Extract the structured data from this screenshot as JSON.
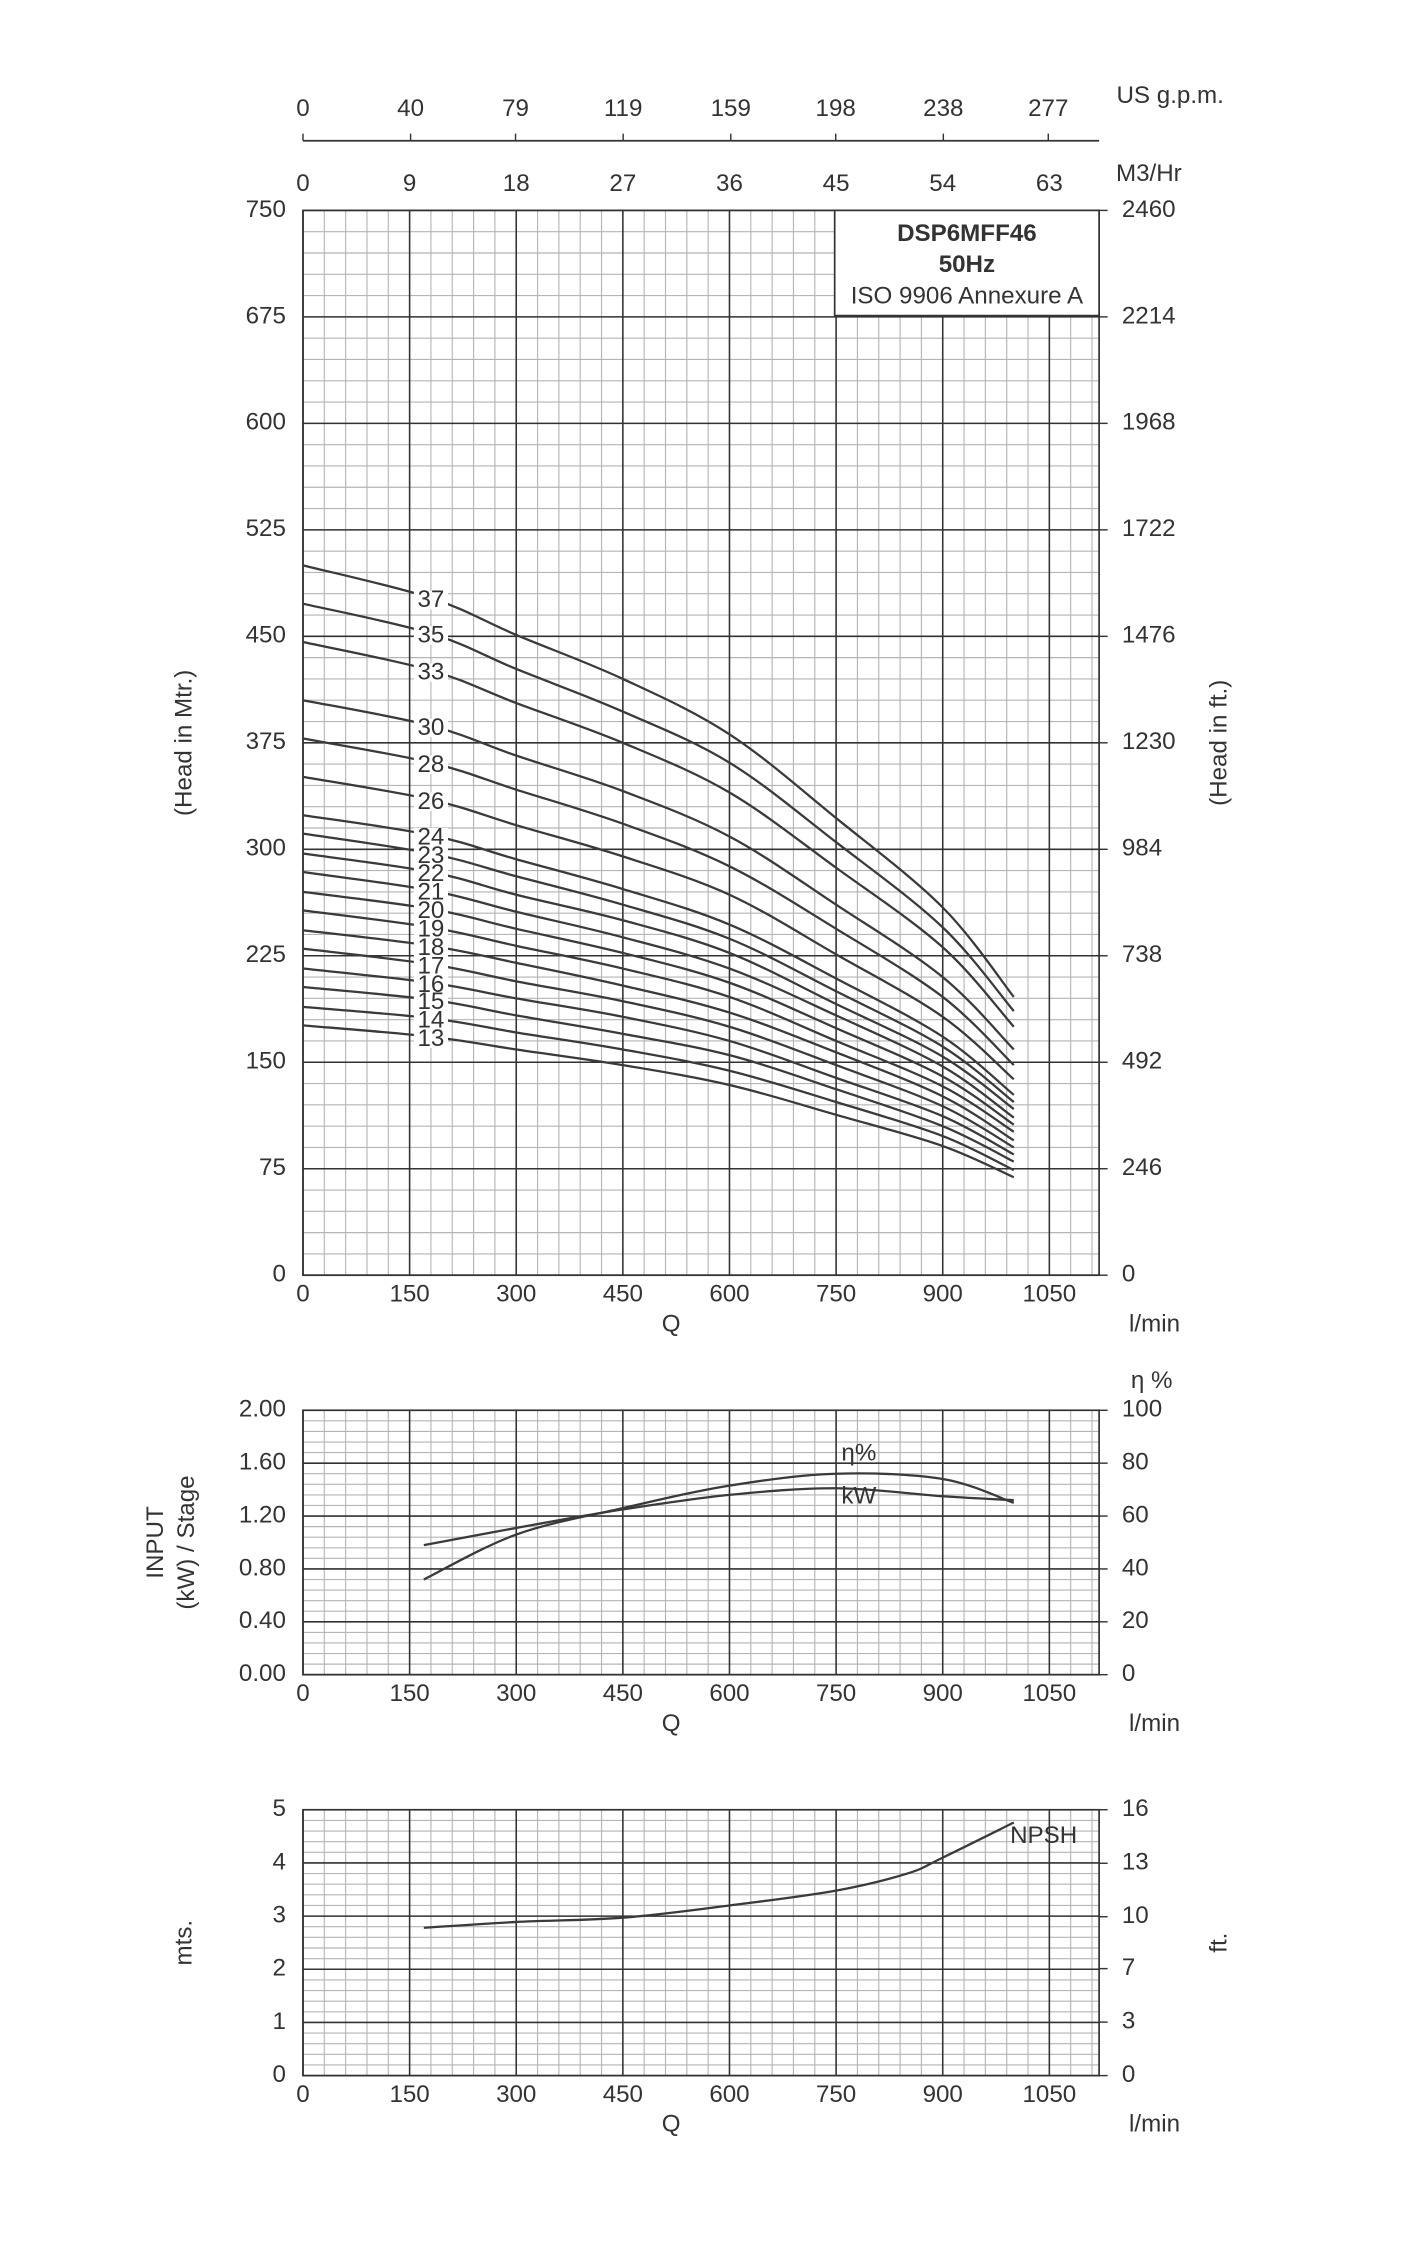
{
  "chart_data": [
    {
      "type": "line",
      "title_box": [
        "DSP6MFF46",
        "50Hz",
        "ISO 9906 Annexure A"
      ],
      "x_label": "Q",
      "x_unit": "l/min",
      "y_label": "(Head in Mtr.)",
      "y2_label": "(Head in ft.)",
      "xlim": [
        0,
        1120
      ],
      "xticks": [
        0,
        150,
        300,
        450,
        600,
        750,
        900,
        1050
      ],
      "ylim": [
        0,
        750
      ],
      "yticks": [
        0,
        75,
        150,
        225,
        300,
        375,
        450,
        525,
        600,
        675,
        750
      ],
      "y2lim": [
        0,
        2460
      ],
      "y2ticks": [
        0,
        246,
        492,
        738,
        984,
        1230,
        1476,
        1722,
        1968,
        2214,
        2460
      ],
      "top_axes": [
        {
          "label": "M3/Hr",
          "xlim": [
            0,
            67.2
          ],
          "xticks": [
            0,
            9,
            18,
            27,
            36,
            45,
            54,
            63
          ]
        },
        {
          "label": "US g.p.m.",
          "xlim": [
            0,
            295.9
          ],
          "xticks": [
            0,
            40,
            79,
            119,
            159,
            198,
            238,
            277
          ]
        }
      ],
      "grid": true,
      "x": [
        0,
        180,
        300,
        450,
        600,
        750,
        900,
        1000
      ],
      "series": [
        {
          "name": "37",
          "color": "#3a3a3a",
          "values": [
            500,
            477,
            451,
            420,
            381,
            322,
            259,
            196
          ]
        },
        {
          "name": "35",
          "color": "#3a3a3a",
          "values": [
            473,
            452,
            427,
            397,
            361,
            305,
            245,
            186
          ]
        },
        {
          "name": "33",
          "color": "#3a3a3a",
          "values": [
            446,
            426,
            403,
            375,
            340,
            287,
            231,
            175
          ]
        },
        {
          "name": "30",
          "color": "#3a3a3a",
          "values": [
            405,
            387,
            366,
            341,
            309,
            261,
            210,
            159
          ]
        },
        {
          "name": "28",
          "color": "#3a3a3a",
          "values": [
            378,
            361,
            342,
            318,
            288,
            244,
            196,
            148
          ]
        },
        {
          "name": "26",
          "color": "#3a3a3a",
          "values": [
            351,
            335,
            317,
            295,
            268,
            226,
            182,
            138
          ]
        },
        {
          "name": "24",
          "color": "#3a3a3a",
          "values": [
            324,
            310,
            293,
            272,
            247,
            209,
            168,
            127
          ]
        },
        {
          "name": "23",
          "color": "#3a3a3a",
          "values": [
            311,
            297,
            281,
            261,
            237,
            200,
            161,
            122
          ]
        },
        {
          "name": "22",
          "color": "#3a3a3a",
          "values": [
            297,
            284,
            268,
            250,
            227,
            191,
            154,
            117
          ]
        },
        {
          "name": "21",
          "color": "#3a3a3a",
          "values": [
            284,
            271,
            256,
            238,
            216,
            183,
            147,
            111
          ]
        },
        {
          "name": "20",
          "color": "#3a3a3a",
          "values": [
            270,
            258,
            244,
            227,
            206,
            174,
            140,
            106
          ]
        },
        {
          "name": "19",
          "color": "#3a3a3a",
          "values": [
            257,
            245,
            232,
            216,
            196,
            165,
            133,
            101
          ]
        },
        {
          "name": "18",
          "color": "#3a3a3a",
          "values": [
            243,
            232,
            220,
            204,
            185,
            157,
            126,
            95
          ]
        },
        {
          "name": "17",
          "color": "#3a3a3a",
          "values": [
            230,
            219,
            207,
            193,
            175,
            148,
            119,
            90
          ]
        },
        {
          "name": "16",
          "color": "#3a3a3a",
          "values": [
            216,
            206,
            195,
            182,
            165,
            139,
            112,
            85
          ]
        },
        {
          "name": "15",
          "color": "#3a3a3a",
          "values": [
            203,
            194,
            183,
            170,
            155,
            131,
            105,
            80
          ]
        },
        {
          "name": "14",
          "color": "#3a3a3a",
          "values": [
            189,
            181,
            171,
            159,
            144,
            122,
            98,
            74
          ]
        },
        {
          "name": "13",
          "color": "#3a3a3a",
          "values": [
            176,
            168,
            159,
            148,
            134,
            113,
            91,
            69
          ]
        }
      ]
    },
    {
      "type": "line",
      "x_label": "Q",
      "x_unit": "l/min",
      "y_label": [
        "INPUT",
        "(kW) / Stage"
      ],
      "y2_label": "η %",
      "xlim": [
        0,
        1120
      ],
      "xticks": [
        0,
        150,
        300,
        450,
        600,
        750,
        900,
        1050
      ],
      "ylim": [
        0,
        2
      ],
      "yticks": [
        {
          "value": 0,
          "label": "0.00"
        },
        {
          "value": 0.4,
          "label": "0.40"
        },
        {
          "value": 0.8,
          "label": "0.80"
        },
        {
          "value": 1.2,
          "label": "1.20"
        },
        {
          "value": 1.6,
          "label": "1.60"
        },
        {
          "value": 2,
          "label": "2.00"
        }
      ],
      "y2lim": [
        0,
        100
      ],
      "y2ticks": [
        0,
        20,
        40,
        60,
        80,
        100
      ],
      "grid": true,
      "x": [
        170,
        300,
        450,
        600,
        750,
        900,
        1000
      ],
      "series": [
        {
          "name": "η%",
          "color": "#3a3a3a",
          "axis": "y2",
          "values": [
            36,
            53,
            63,
            71.5,
            76,
            74,
            65
          ]
        },
        {
          "name": "kW",
          "color": "#3a3a3a",
          "values": [
            0.98,
            1.11,
            1.25,
            1.36,
            1.41,
            1.35,
            1.32
          ]
        }
      ]
    },
    {
      "type": "line",
      "x_label": "Q",
      "x_unit": "l/min",
      "y_label": "mts.",
      "y2_label": "ft.",
      "xlim": [
        0,
        1120
      ],
      "xticks": [
        0,
        150,
        300,
        450,
        600,
        750,
        900,
        1050
      ],
      "ylim": [
        0,
        5
      ],
      "yticks": [
        0,
        1,
        2,
        3,
        4,
        5
      ],
      "y2lim": [
        0,
        16.4
      ],
      "y2ticks": [
        0,
        {
          "value": 3.3,
          "label": "3"
        },
        {
          "value": 6.6,
          "label": "7"
        },
        {
          "value": 9.8,
          "label": "10"
        },
        {
          "value": 13.1,
          "label": "13"
        },
        {
          "value": 16.4,
          "label": "16"
        }
      ],
      "grid": true,
      "x": [
        170,
        300,
        450,
        600,
        750,
        850,
        900,
        1000
      ],
      "series": [
        {
          "name": "NPSH",
          "color": "#3a3a3a",
          "values": [
            2.78,
            2.89,
            2.97,
            3.2,
            3.48,
            3.8,
            4.1,
            4.76
          ]
        }
      ]
    }
  ]
}
